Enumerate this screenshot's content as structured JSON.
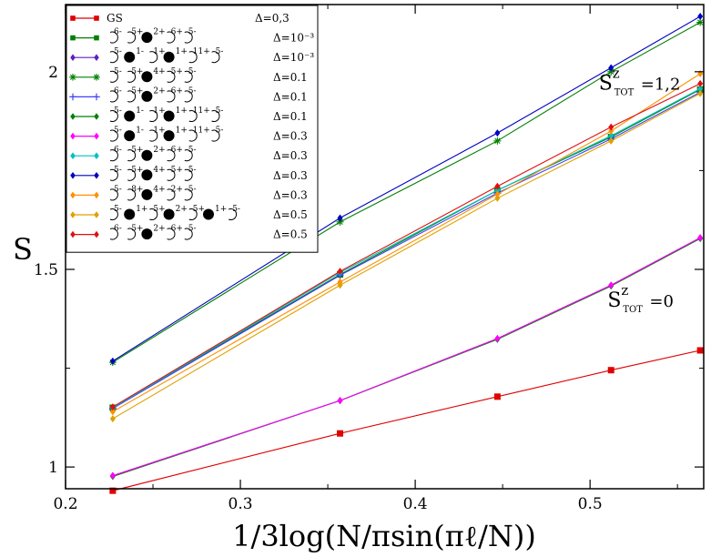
{
  "chart_data": {
    "type": "line",
    "title": "",
    "xlabel": "1/3log(N/πsin(πℓ/N))",
    "ylabel": "S",
    "xlim": [
      0.2,
      0.565
    ],
    "ylim": [
      0.945,
      2.17
    ],
    "x_ticks": [
      0.2,
      0.3,
      0.4,
      0.5
    ],
    "y_ticks": [
      1,
      1.5,
      2
    ],
    "x_tick_labels": [
      "0.2",
      "0.3",
      "0.4",
      "0.5"
    ],
    "y_tick_labels": [
      "1",
      "1.5",
      "2"
    ],
    "x": [
      0.227,
      0.357,
      0.447,
      0.512,
      0.563
    ],
    "legend_position": "top-left",
    "series": [
      {
        "name": "GS",
        "delta": "Δ=0,3",
        "color": "#e00000",
        "marker": "square",
        "values": [
          0.94,
          1.085,
          1.178,
          1.245,
          1.295
        ]
      },
      {
        "name": "○6-○5+●2+○6+○5-",
        "delta": "Δ=10⁻³",
        "color": "#008000",
        "marker": "square",
        "values": [
          1.15,
          1.487,
          1.7,
          1.835,
          1.955
        ]
      },
      {
        "name": "○5-●1-○1+●1+○11+○5-",
        "delta": "Δ=10⁻³",
        "color": "#6020c0",
        "marker": "diamond",
        "values": [
          0.978,
          1.168,
          1.325,
          1.46,
          1.58
        ]
      },
      {
        "name": "○5-○5+●4+○5+○5-",
        "delta": "Δ=0.1",
        "color": "#008000",
        "marker": "star",
        "values": [
          1.265,
          1.62,
          1.825,
          2.0,
          2.125
        ]
      },
      {
        "name": "○6-○5+●2+○6+○5-",
        "delta": "Δ=0.1",
        "color": "#4040ff",
        "marker": "plus",
        "values": [
          1.148,
          1.485,
          1.693,
          1.83,
          1.948
        ]
      },
      {
        "name": "○5-●1-○1+●1+○11+○5-",
        "delta": "Δ=0.1",
        "color": "#008000",
        "marker": "diamond",
        "values": [
          0.976,
          1.168,
          1.323,
          1.458,
          1.578
        ]
      },
      {
        "name": "○5-●1-○1+●1+○11+○5-",
        "delta": "Δ=0.3",
        "color": "#ff00ff",
        "marker": "diamond",
        "values": [
          0.978,
          1.168,
          1.325,
          1.46,
          1.58
        ]
      },
      {
        "name": "○6-○5+●2+○6+○5-",
        "delta": "Δ=0.3",
        "color": "#00c0c0",
        "marker": "diamond",
        "values": [
          1.15,
          1.492,
          1.7,
          1.838,
          1.957
        ]
      },
      {
        "name": "○5-○5+●4+○5+○5-",
        "delta": "Δ=0.3",
        "color": "#0000c0",
        "marker": "diamond",
        "values": [
          1.268,
          1.63,
          1.845,
          2.01,
          2.14
        ]
      },
      {
        "name": "○5-○8+●4+○2+○5-",
        "delta": "Δ=0.3",
        "color": "#ff9000",
        "marker": "diamond",
        "values": [
          1.14,
          1.468,
          1.69,
          1.85,
          1.995
        ]
      },
      {
        "name": "○5-●1+○5+●2+○5+●1+○5-",
        "delta": "Δ=0.5",
        "color": "#e0a000",
        "marker": "diamond",
        "values": [
          1.122,
          1.46,
          1.68,
          1.825,
          1.945
        ]
      },
      {
        "name": "○6-○5+●2+○6+○5-",
        "delta": "Δ=0.5",
        "color": "#e01010",
        "marker": "diamond",
        "values": [
          1.152,
          1.495,
          1.71,
          1.86,
          1.97
        ]
      }
    ],
    "annotations": [
      {
        "text": "S",
        "sup": "z",
        "sub": "TOT",
        "value": "=1,2",
        "x": 0.505,
        "y": 1.955
      },
      {
        "text": "S",
        "sup": "z",
        "sub": "TOT",
        "value": "=0",
        "x": 0.51,
        "y": 1.405
      }
    ]
  }
}
